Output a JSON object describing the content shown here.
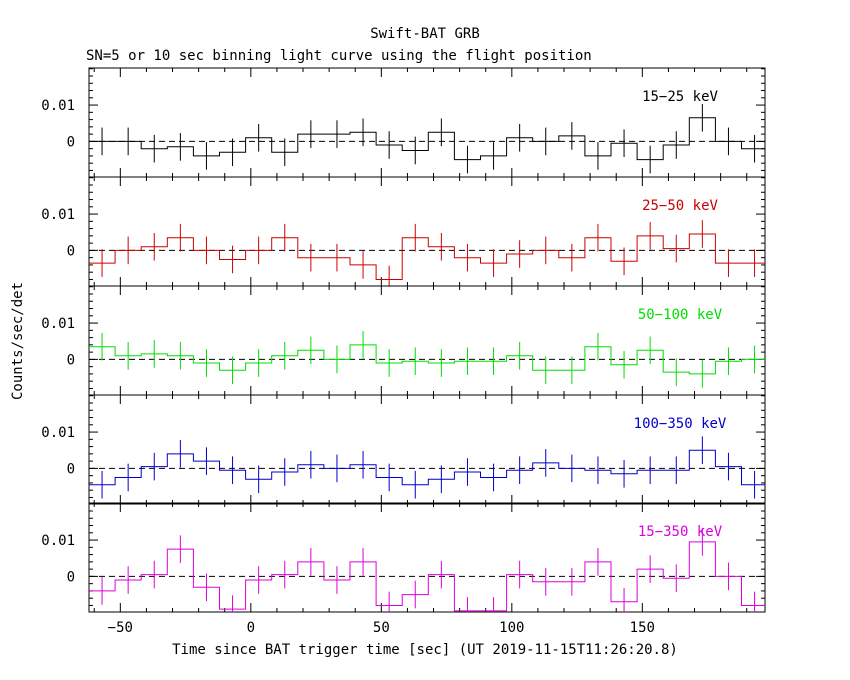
{
  "chart_data": {
    "type": "line",
    "title": "Swift-BAT GRB",
    "subtitle": "SN=5 or 10 sec binning light curve using the flight position",
    "xlabel": "Time since BAT trigger time [sec] (UT 2019-11-15T11:26:20.8)",
    "ylabel": "Counts/sec/det",
    "xlim": [
      -62,
      197
    ],
    "x_ticks": [
      -50,
      0,
      50,
      100,
      150
    ],
    "x_tick_labels": [
      "−50",
      "0",
      "50",
      "100",
      "150"
    ],
    "ylim": [
      -0.0098,
      0.0202
    ],
    "y_ticks": [
      0,
      0.01
    ],
    "y_tick_labels": [
      "0",
      "0.01"
    ],
    "bin_width": 10,
    "bin_starts": [
      -62,
      -52,
      -42,
      -32,
      -22,
      -12,
      -2,
      8,
      18,
      28,
      38,
      48,
      58,
      68,
      78,
      88,
      98,
      108,
      118,
      128,
      138,
      148,
      158,
      168,
      178,
      188
    ],
    "error_bar": 0.0038,
    "series": [
      {
        "name": "15−25 keV",
        "color": "#000000",
        "values": [
          0.0,
          0.0,
          -0.002,
          -0.0015,
          -0.004,
          -0.003,
          0.001,
          -0.003,
          0.002,
          0.002,
          0.0025,
          -0.001,
          -0.0025,
          0.0025,
          -0.005,
          -0.004,
          0.001,
          0.0,
          0.0015,
          -0.004,
          -0.0005,
          -0.005,
          -0.001,
          0.0065,
          0.0,
          -0.002
        ]
      },
      {
        "name": "25−50 keV",
        "color": "#cc0000",
        "values": [
          -0.0035,
          0.0,
          0.001,
          0.0035,
          0.0,
          -0.0025,
          0.0,
          0.0035,
          -0.002,
          -0.002,
          -0.004,
          -0.008,
          0.0035,
          0.001,
          -0.002,
          -0.0035,
          -0.001,
          0.0,
          -0.002,
          0.0035,
          -0.003,
          0.004,
          0.0005,
          0.0045,
          -0.0035,
          -0.0035
        ]
      },
      {
        "name": "50−100 keV",
        "color": "#00dd00",
        "values": [
          0.0035,
          0.001,
          0.0015,
          0.001,
          -0.001,
          -0.003,
          -0.001,
          0.001,
          0.0025,
          0.0,
          0.004,
          -0.001,
          -0.0005,
          -0.001,
          -0.0005,
          -0.0005,
          0.001,
          -0.003,
          -0.003,
          0.0035,
          -0.0015,
          0.0025,
          -0.0035,
          -0.004,
          -0.0005,
          0.0
        ]
      },
      {
        "name": "100−350 keV",
        "color": "#0000cc",
        "values": [
          -0.0045,
          -0.0025,
          0.0005,
          0.004,
          0.002,
          -0.0005,
          -0.003,
          -0.001,
          0.001,
          0.0,
          0.001,
          -0.0025,
          -0.0045,
          -0.003,
          -0.001,
          -0.0025,
          -0.0005,
          0.0015,
          0.0,
          -0.0005,
          -0.0015,
          -0.0005,
          -0.0005,
          0.005,
          0.0005,
          -0.0045
        ]
      },
      {
        "name": "15−350 keV",
        "color": "#dd00dd",
        "values": [
          -0.004,
          -0.001,
          0.0005,
          0.0075,
          -0.003,
          -0.009,
          -0.001,
          0.0005,
          0.004,
          -0.001,
          0.004,
          -0.008,
          -0.005,
          0.0005,
          -0.0095,
          -0.0095,
          0.0005,
          -0.0015,
          -0.0015,
          0.004,
          -0.007,
          0.002,
          -0.0005,
          0.0095,
          0.0,
          -0.008
        ]
      }
    ]
  }
}
